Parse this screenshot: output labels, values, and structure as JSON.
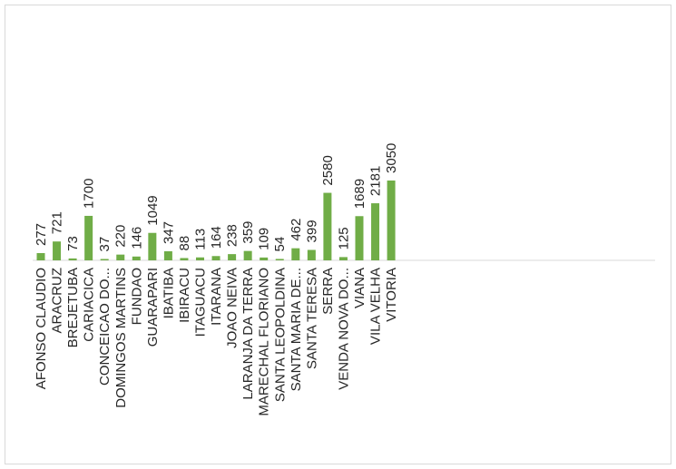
{
  "chart_data": {
    "type": "bar",
    "title": "",
    "xlabel": "",
    "ylabel": "",
    "bar_color": "#70ad47",
    "axis_color": "#d9d9d9",
    "ylim": [
      0,
      3050
    ],
    "grid": false,
    "legend": "none",
    "categories": [
      "AFONSO CLAUDIO",
      "ARACRUZ",
      "BREJETUBA",
      "CARIACICA",
      "CONCEICAO DO...",
      "DOMINGOS MARTINS",
      "FUNDAO",
      "GUARAPARI",
      "IBATIBA",
      "IBIRACU",
      "ITAGUACU",
      "ITARANA",
      "JOAO NEIVA",
      "LARANJA DA TERRA",
      "MARECHAL FLORIANO",
      "SANTA LEOPOLDINA",
      "SANTA MARIA DE...",
      "SANTA TERESA",
      "SERRA",
      "VENDA NOVA DO...",
      "VIANA",
      "VILA VELHA",
      "VITORIA"
    ],
    "values": [
      277,
      721,
      73,
      1700,
      37,
      220,
      146,
      1049,
      347,
      88,
      113,
      164,
      238,
      359,
      109,
      54,
      462,
      399,
      2580,
      125,
      1689,
      2181,
      3050
    ]
  }
}
